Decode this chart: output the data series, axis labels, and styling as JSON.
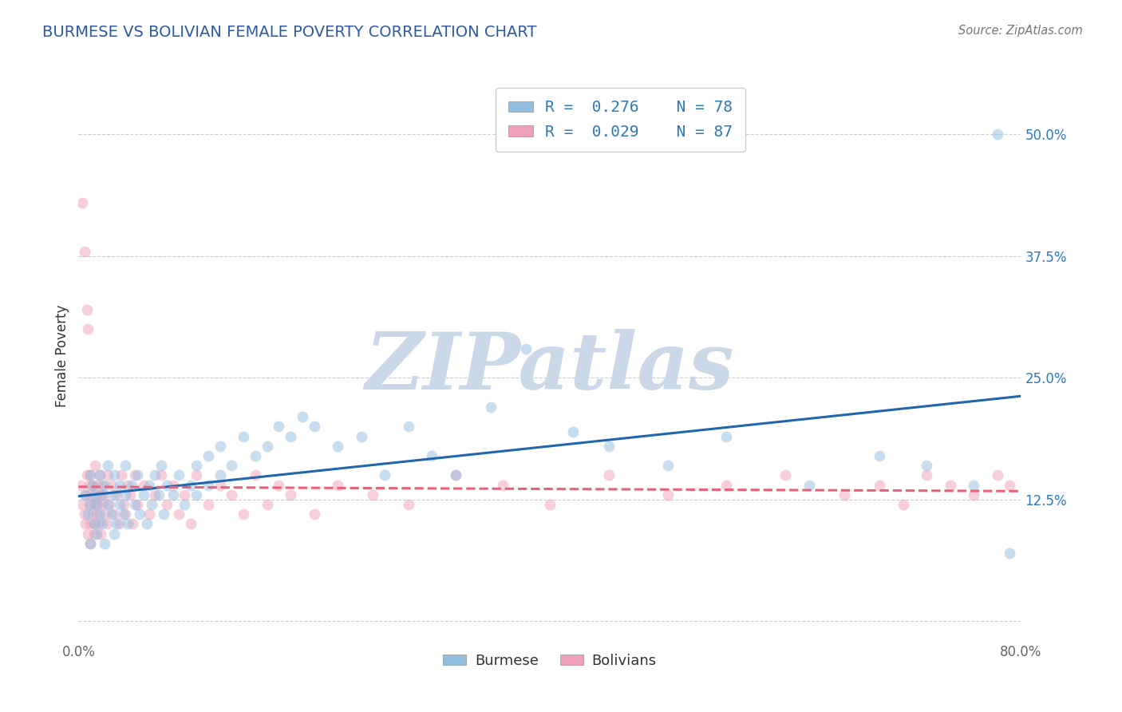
{
  "title": "BURMESE VS BOLIVIAN FEMALE POVERTY CORRELATION CHART",
  "source_text": "Source: ZipAtlas.com",
  "ylabel": "Female Poverty",
  "xlim": [
    0.0,
    0.8
  ],
  "ylim": [
    -0.02,
    0.565
  ],
  "xticks": [
    0.0,
    0.2,
    0.4,
    0.6,
    0.8
  ],
  "xticklabels": [
    "0.0%",
    "",
    "",
    "",
    "80.0%"
  ],
  "yticks": [
    0.0,
    0.125,
    0.25,
    0.375,
    0.5
  ],
  "yticklabels": [
    "",
    "12.5%",
    "25.0%",
    "37.5%",
    "50.0%"
  ],
  "burmese_color": "#92BFE0",
  "bolivian_color": "#F0A0B8",
  "burmese_line_color": "#2166AC",
  "bolivian_line_color": "#E8607A",
  "burmese_R": 0.276,
  "burmese_N": 78,
  "bolivian_R": 0.029,
  "bolivian_N": 87,
  "legend_text_color": "#2B7BB9",
  "watermark": "ZIPatlas",
  "watermark_color": "#CBD8E8",
  "background_color": "#FFFFFF",
  "grid_color": "#CCCCCC",
  "title_color": "#2B5BA8",
  "marker_size": 100,
  "marker_alpha": 0.5,
  "line_width": 2.2,
  "burmese_x": [
    0.005,
    0.008,
    0.01,
    0.01,
    0.01,
    0.012,
    0.013,
    0.013,
    0.015,
    0.015,
    0.018,
    0.018,
    0.02,
    0.02,
    0.022,
    0.022,
    0.025,
    0.025,
    0.028,
    0.03,
    0.03,
    0.03,
    0.032,
    0.035,
    0.035,
    0.038,
    0.04,
    0.04,
    0.042,
    0.045,
    0.048,
    0.05,
    0.052,
    0.055,
    0.058,
    0.06,
    0.062,
    0.065,
    0.068,
    0.07,
    0.072,
    0.075,
    0.08,
    0.085,
    0.09,
    0.095,
    0.1,
    0.1,
    0.11,
    0.11,
    0.12,
    0.12,
    0.13,
    0.14,
    0.15,
    0.16,
    0.17,
    0.18,
    0.19,
    0.2,
    0.22,
    0.24,
    0.26,
    0.28,
    0.3,
    0.32,
    0.35,
    0.38,
    0.42,
    0.45,
    0.5,
    0.55,
    0.62,
    0.68,
    0.72,
    0.76,
    0.78,
    0.79
  ],
  "burmese_y": [
    0.13,
    0.11,
    0.15,
    0.12,
    0.08,
    0.14,
    0.1,
    0.13,
    0.12,
    0.09,
    0.11,
    0.15,
    0.13,
    0.1,
    0.14,
    0.08,
    0.12,
    0.16,
    0.11,
    0.13,
    0.09,
    0.15,
    0.1,
    0.14,
    0.12,
    0.11,
    0.13,
    0.16,
    0.1,
    0.14,
    0.12,
    0.15,
    0.11,
    0.13,
    0.1,
    0.14,
    0.12,
    0.15,
    0.13,
    0.16,
    0.11,
    0.14,
    0.13,
    0.15,
    0.12,
    0.14,
    0.16,
    0.13,
    0.17,
    0.14,
    0.15,
    0.18,
    0.16,
    0.19,
    0.17,
    0.18,
    0.2,
    0.19,
    0.21,
    0.2,
    0.18,
    0.19,
    0.15,
    0.2,
    0.17,
    0.15,
    0.22,
    0.28,
    0.195,
    0.18,
    0.16,
    0.19,
    0.14,
    0.17,
    0.16,
    0.14,
    0.5,
    0.07
  ],
  "bolivian_x": [
    0.002,
    0.003,
    0.003,
    0.005,
    0.005,
    0.006,
    0.006,
    0.007,
    0.007,
    0.008,
    0.008,
    0.009,
    0.009,
    0.01,
    0.01,
    0.01,
    0.01,
    0.012,
    0.012,
    0.013,
    0.013,
    0.014,
    0.014,
    0.015,
    0.015,
    0.016,
    0.016,
    0.017,
    0.018,
    0.018,
    0.019,
    0.02,
    0.02,
    0.022,
    0.022,
    0.024,
    0.025,
    0.026,
    0.028,
    0.03,
    0.032,
    0.034,
    0.036,
    0.038,
    0.04,
    0.042,
    0.044,
    0.046,
    0.048,
    0.05,
    0.055,
    0.06,
    0.065,
    0.07,
    0.075,
    0.08,
    0.085,
    0.09,
    0.095,
    0.1,
    0.11,
    0.12,
    0.13,
    0.14,
    0.15,
    0.16,
    0.17,
    0.18,
    0.2,
    0.22,
    0.25,
    0.28,
    0.32,
    0.36,
    0.4,
    0.45,
    0.5,
    0.55,
    0.6,
    0.65,
    0.68,
    0.7,
    0.72,
    0.74,
    0.76,
    0.78,
    0.79
  ],
  "bolivian_y": [
    0.14,
    0.12,
    0.43,
    0.11,
    0.38,
    0.13,
    0.1,
    0.15,
    0.32,
    0.09,
    0.3,
    0.14,
    0.12,
    0.1,
    0.08,
    0.13,
    0.15,
    0.11,
    0.14,
    0.09,
    0.12,
    0.1,
    0.16,
    0.13,
    0.11,
    0.14,
    0.12,
    0.1,
    0.13,
    0.15,
    0.09,
    0.12,
    0.14,
    0.11,
    0.13,
    0.1,
    0.15,
    0.12,
    0.14,
    0.11,
    0.13,
    0.1,
    0.15,
    0.12,
    0.11,
    0.14,
    0.13,
    0.1,
    0.15,
    0.12,
    0.14,
    0.11,
    0.13,
    0.15,
    0.12,
    0.14,
    0.11,
    0.13,
    0.1,
    0.15,
    0.12,
    0.14,
    0.13,
    0.11,
    0.15,
    0.12,
    0.14,
    0.13,
    0.11,
    0.14,
    0.13,
    0.12,
    0.15,
    0.14,
    0.12,
    0.15,
    0.13,
    0.14,
    0.15,
    0.13,
    0.14,
    0.12,
    0.15,
    0.14,
    0.13,
    0.15,
    0.14
  ]
}
